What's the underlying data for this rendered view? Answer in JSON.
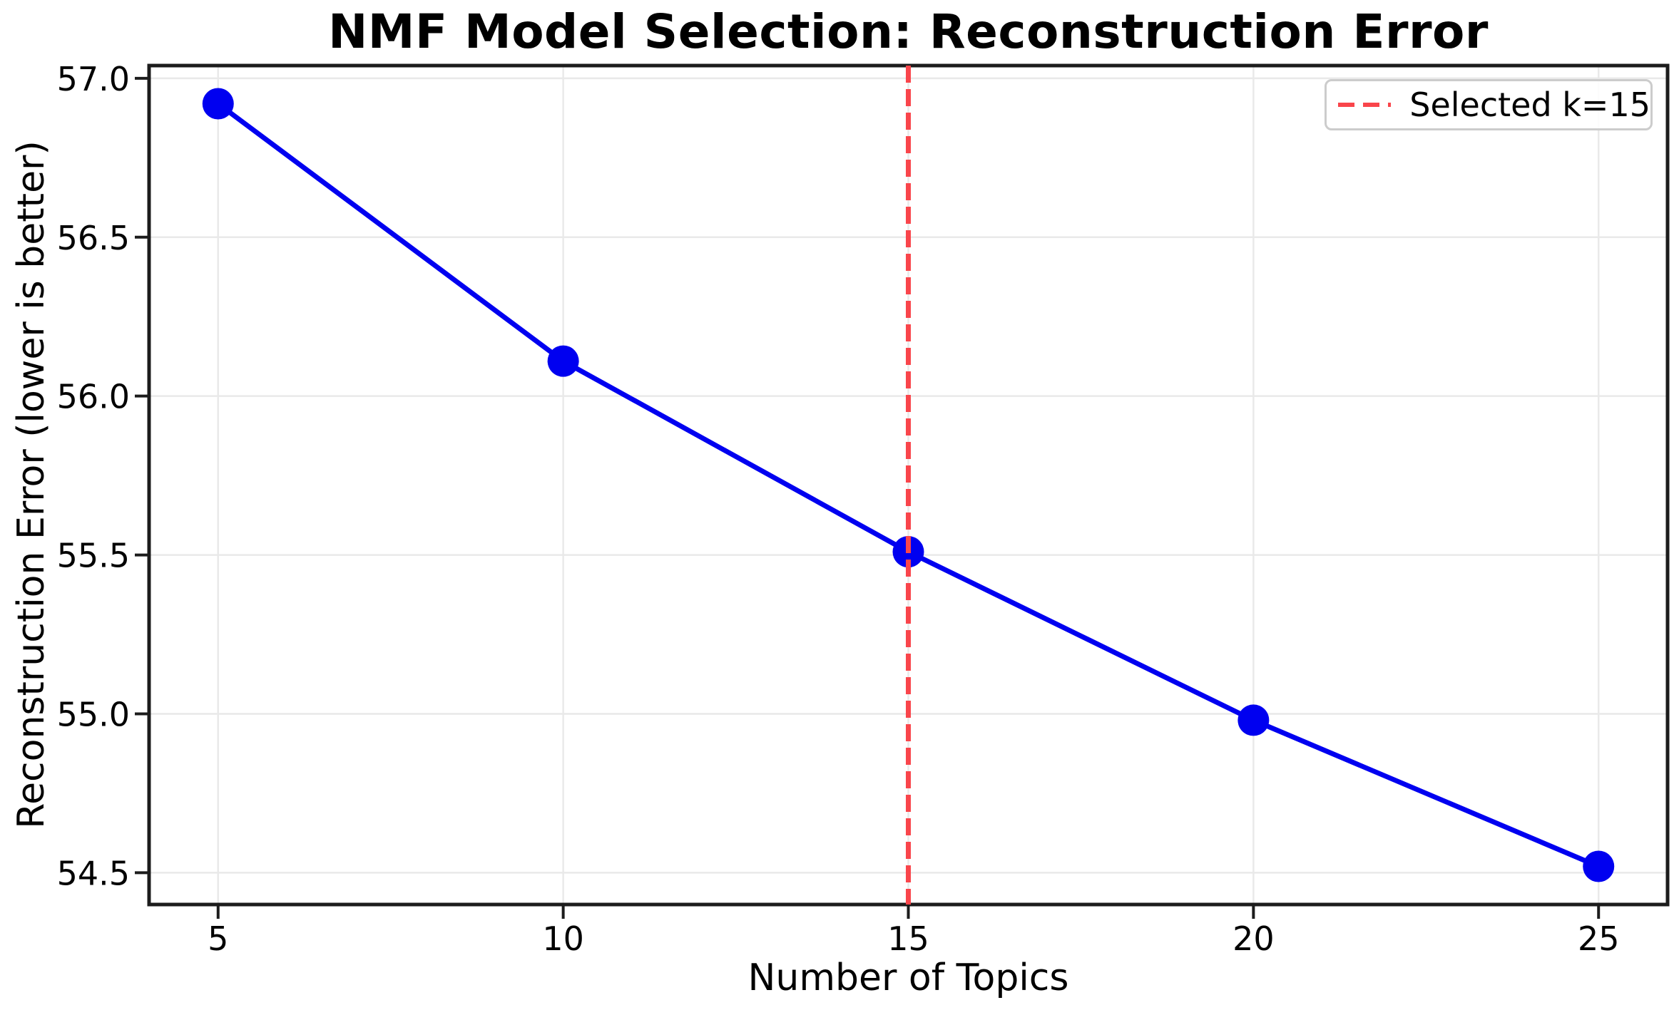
{
  "figure": {
    "background": "#ffffff"
  },
  "chart_data": {
    "type": "line",
    "title": "NMF Model Selection: Reconstruction Error",
    "xlabel": "Number of Topics",
    "ylabel": "Reconstruction Error (lower is better)",
    "x": [
      5,
      10,
      15,
      20,
      25
    ],
    "series": [
      {
        "name": "Reconstruction Error",
        "values": [
          56.92,
          56.11,
          55.51,
          54.98,
          54.52
        ],
        "color": "#0000f0",
        "line_width": 7,
        "marker": "circle",
        "marker_radius": 22
      }
    ],
    "vline": {
      "x": 15,
      "style": "dashed",
      "color": "#f9454b",
      "width": 7,
      "dash": [
        24,
        9
      ]
    },
    "legend": {
      "label": "Selected k=15",
      "position": "upper-right"
    },
    "xlim": [
      4,
      26
    ],
    "ylim": [
      54.4,
      57.04
    ],
    "x_ticks": [
      {
        "value": 5,
        "label": "5"
      },
      {
        "value": 10,
        "label": "10"
      },
      {
        "value": 15,
        "label": "15"
      },
      {
        "value": 20,
        "label": "20"
      },
      {
        "value": 25,
        "label": "25"
      }
    ],
    "y_ticks": [
      {
        "value": 54.5,
        "label": "54.5"
      },
      {
        "value": 55.0,
        "label": "55.0"
      },
      {
        "value": 55.5,
        "label": "55.5"
      },
      {
        "value": 56.0,
        "label": "56.0"
      },
      {
        "value": 56.5,
        "label": "56.5"
      },
      {
        "value": 57.0,
        "label": "57.0"
      }
    ],
    "grid": true,
    "colors": {
      "grid": "#e9e9e9",
      "spine": "#1c1c1c",
      "tick": "#1c1c1c",
      "tick_text": "#000000"
    }
  }
}
